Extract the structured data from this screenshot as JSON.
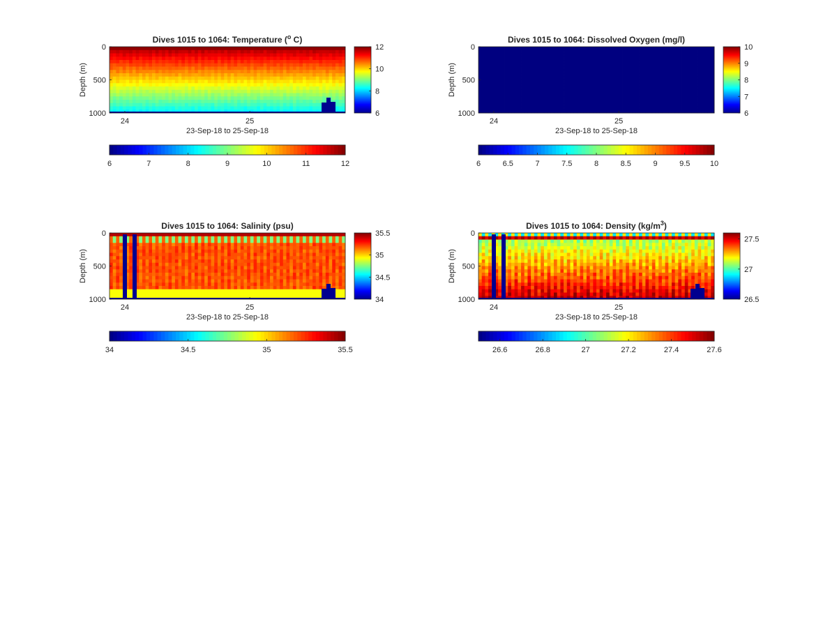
{
  "chart_data": [
    {
      "type": "heatmap",
      "title": "Dives 1015 to 1064: Temperature (",
      "title_sup": "o",
      "title_tail": " C)",
      "xlabel": "23-Sep-18 to 25-Sep-18",
      "ylabel": "Depth (m)",
      "ylim": [
        1000,
        0
      ],
      "yticks": [
        "0",
        "500",
        "1000"
      ],
      "xticks": [
        "24",
        "25"
      ],
      "clim": [
        6,
        12
      ],
      "colorbar_ticks": [
        "6",
        "8",
        "10",
        "12"
      ],
      "h_colorbar_ticks": [
        "6",
        "7",
        "8",
        "9",
        "10",
        "11",
        "12"
      ],
      "colormap": "jet",
      "variable": "temperature"
    },
    {
      "type": "heatmap",
      "title": "Dives 1015 to 1064: Dissolved Oxygen (mg/l)",
      "title_sup": "",
      "title_tail": "",
      "xlabel": "23-Sep-18 to 25-Sep-18",
      "ylabel": "Depth (m)",
      "ylim": [
        1000,
        0
      ],
      "yticks": [
        "0",
        "500",
        "1000"
      ],
      "xticks": [
        "24",
        "25"
      ],
      "clim": [
        6,
        10
      ],
      "colorbar_ticks": [
        "6",
        "7",
        "8",
        "9",
        "10"
      ],
      "h_colorbar_ticks": [
        "6",
        "6.5",
        "7",
        "7.5",
        "8",
        "8.5",
        "9",
        "9.5",
        "10"
      ],
      "colormap": "jet",
      "variable": "oxygen"
    },
    {
      "type": "heatmap",
      "title": "Dives 1015 to 1064: Salinity (psu)",
      "title_sup": "",
      "title_tail": "",
      "xlabel": "23-Sep-18 to 25-Sep-18",
      "ylabel": "Depth (m)",
      "ylim": [
        1000,
        0
      ],
      "yticks": [
        "0",
        "500",
        "1000"
      ],
      "xticks": [
        "24",
        "25"
      ],
      "clim": [
        34,
        35.5
      ],
      "colorbar_ticks": [
        "34",
        "34.5",
        "35",
        "35.5"
      ],
      "h_colorbar_ticks": [
        "34",
        "34.5",
        "35",
        "35.5"
      ],
      "colormap": "jet",
      "variable": "salinity"
    },
    {
      "type": "heatmap",
      "title": "Dives 1015 to 1064: Density (kg/m",
      "title_sup": "3",
      "title_tail": ")",
      "xlabel": "23-Sep-18 to 25-Sep-18",
      "ylabel": "Depth (m)",
      "ylim": [
        1000,
        0
      ],
      "yticks": [
        "0",
        "500",
        "1000"
      ],
      "xticks": [
        "24",
        "25"
      ],
      "clim": [
        26.5,
        27.6
      ],
      "colorbar_ticks": [
        "26.5",
        "27",
        "27.5"
      ],
      "h_colorbar_ticks": [
        "26.6",
        "26.8",
        "27",
        "27.2",
        "27.4",
        "27.6"
      ],
      "colormap": "jet",
      "variable": "density"
    }
  ]
}
